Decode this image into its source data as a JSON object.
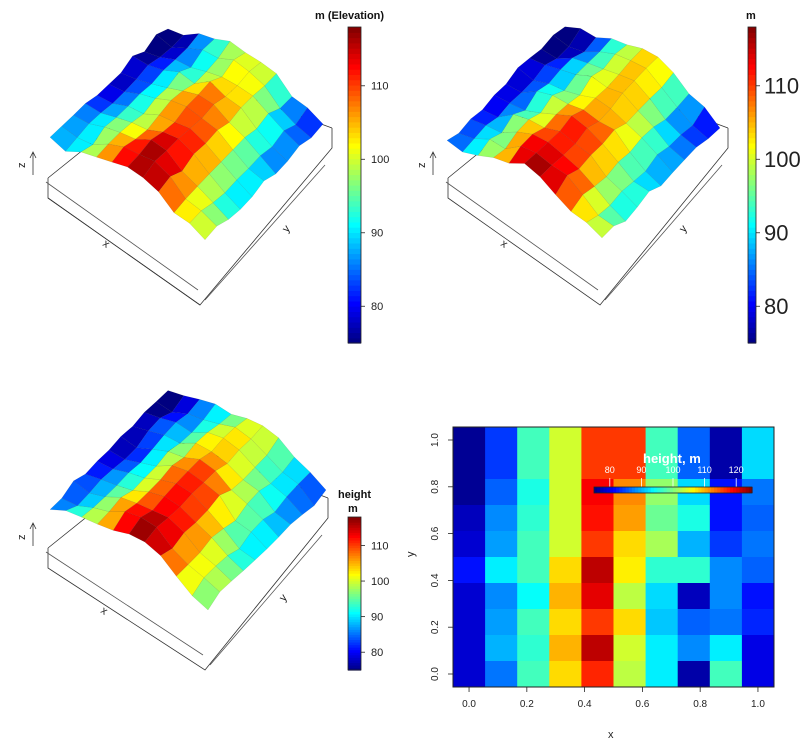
{
  "chart_data": [
    {
      "type": "surface3d",
      "id": "panel1",
      "axis_labels": {
        "x": "x",
        "y": "y",
        "z": "z"
      },
      "colorbar": {
        "title": "m (Elevation)",
        "ticks": [
          80,
          90,
          100,
          110
        ],
        "range": [
          75,
          118
        ]
      }
    },
    {
      "type": "surface3d",
      "id": "panel2",
      "axis_labels": {
        "x": "x",
        "y": "y",
        "z": "z"
      },
      "colorbar": {
        "title": "m",
        "ticks": [
          80,
          90,
          100,
          110
        ],
        "range": [
          75,
          118
        ]
      }
    },
    {
      "type": "surface3d",
      "id": "panel3",
      "axis_labels": {
        "x": "x",
        "y": "y",
        "z": "z"
      },
      "colorbar": {
        "title": "height",
        "title2": "m",
        "ticks": [
          80,
          90,
          100,
          110
        ],
        "range": [
          75,
          118
        ]
      }
    },
    {
      "type": "heatmap",
      "id": "panel4",
      "xlabel": "x",
      "ylabel": "y",
      "xticks": [
        "0.0",
        "0.2",
        "0.4",
        "0.6",
        "0.8",
        "1.0"
      ],
      "yticks": [
        "0.0",
        "0.2",
        "0.4",
        "0.6",
        "0.8",
        "1.0"
      ],
      "colorbar": {
        "title": "height, m",
        "ticks": [
          "80",
          "90",
          "100",
          "110",
          "120"
        ],
        "range": [
          75,
          125
        ]
      },
      "grid_rows_top_to_bottom": [
        [
          76,
          84,
          97,
          104,
          116,
          116,
          97,
          86,
          77,
          92
        ],
        [
          76,
          84,
          97,
          104,
          116,
          116,
          97,
          86,
          77,
          92
        ],
        [
          76,
          86,
          95,
          104,
          119,
          112,
          101,
          92,
          82,
          87
        ],
        [
          78,
          88,
          96,
          104,
          118,
          111,
          99,
          95,
          82,
          86
        ],
        [
          79,
          89,
          97,
          104,
          116,
          108,
          102,
          90,
          84,
          87
        ],
        [
          82,
          93,
          97,
          108,
          122,
          107,
          96,
          96,
          88,
          86
        ],
        [
          79,
          88,
          94,
          110,
          120,
          103,
          92,
          78,
          88,
          82
        ],
        [
          79,
          89,
          97,
          108,
          116,
          108,
          91,
          86,
          87,
          83
        ],
        [
          79,
          90,
          96,
          110,
          122,
          104,
          93,
          88,
          93,
          80
        ],
        [
          79,
          87,
          97,
          108,
          117,
          103,
          93,
          77,
          97,
          80
        ]
      ]
    }
  ]
}
